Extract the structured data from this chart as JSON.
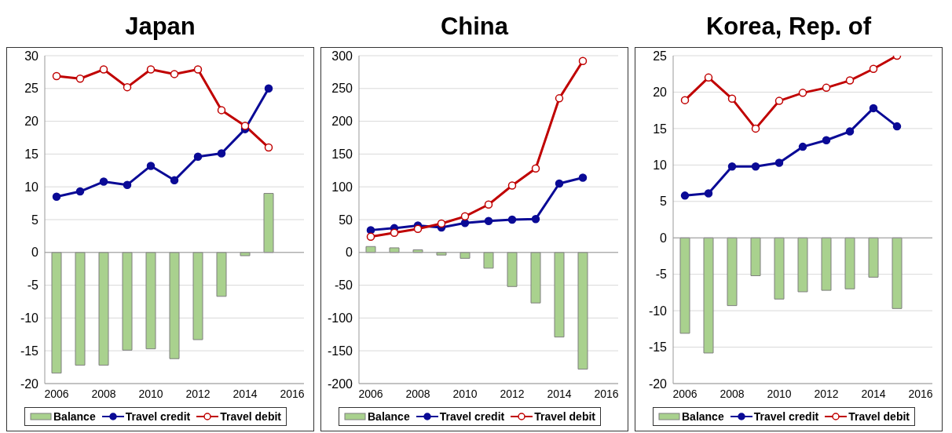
{
  "chart_data": [
    {
      "type": "bar",
      "title": "Japan",
      "x": [
        2006,
        2007,
        2008,
        2009,
        2010,
        2011,
        2012,
        2013,
        2014,
        2015
      ],
      "xlim": [
        2005.5,
        2016.5
      ],
      "xticks": [
        2006,
        2008,
        2010,
        2012,
        2014,
        2016
      ],
      "ylim": [
        -20,
        30
      ],
      "yticks": [
        -20,
        -15,
        -10,
        -5,
        0,
        5,
        10,
        15,
        20,
        25,
        30
      ],
      "grid": "y",
      "legend": "bottom",
      "marker": "circle",
      "series": [
        {
          "name": "Balance",
          "color": "#a9d18e",
          "values": [
            -18.4,
            -17.2,
            -17.2,
            -14.9,
            -14.7,
            -16.2,
            -13.3,
            -6.7,
            -0.5,
            9.0
          ]
        },
        {
          "name": "Travel credit",
          "type": "line",
          "color": "#0a0a96",
          "values": [
            8.5,
            9.3,
            10.8,
            10.3,
            13.2,
            11.0,
            14.6,
            15.1,
            18.8,
            25.0
          ]
        },
        {
          "name": "Travel debit",
          "type": "line",
          "color": "#c00000",
          "values": [
            26.9,
            26.5,
            27.9,
            25.2,
            27.9,
            27.2,
            27.9,
            21.7,
            19.3,
            16.0
          ]
        }
      ]
    },
    {
      "type": "bar",
      "title": "China",
      "x": [
        2006,
        2007,
        2008,
        2009,
        2010,
        2011,
        2012,
        2013,
        2014,
        2015
      ],
      "xlim": [
        2005.5,
        2016.5
      ],
      "xticks": [
        2006,
        2008,
        2010,
        2012,
        2014,
        2016
      ],
      "ylim": [
        -200,
        300
      ],
      "yticks": [
        -200,
        -150,
        -100,
        -50,
        0,
        50,
        100,
        150,
        200,
        250,
        300
      ],
      "grid": "y",
      "legend": "bottom",
      "marker": "circle",
      "series": [
        {
          "name": "Balance",
          "color": "#a9d18e",
          "values": [
            9,
            7,
            4,
            -4,
            -9,
            -24,
            -52,
            -77,
            -129,
            -178
          ]
        },
        {
          "name": "Travel credit",
          "type": "line",
          "color": "#0a0a96",
          "values": [
            34,
            37,
            41,
            38,
            45,
            48,
            50,
            51,
            105,
            114
          ]
        },
        {
          "name": "Travel debit",
          "type": "line",
          "color": "#c00000",
          "values": [
            24,
            30,
            36,
            44,
            55,
            73,
            102,
            128,
            235,
            292
          ]
        }
      ]
    },
    {
      "type": "bar",
      "title": "Korea, Rep. of",
      "x": [
        2006,
        2007,
        2008,
        2009,
        2010,
        2011,
        2012,
        2013,
        2014,
        2015
      ],
      "xlim": [
        2005.5,
        2016.5
      ],
      "xticks": [
        2006,
        2008,
        2010,
        2012,
        2014,
        2016
      ],
      "ylim": [
        -20,
        25
      ],
      "yticks": [
        -20,
        -15,
        -10,
        -5,
        0,
        5,
        10,
        15,
        20,
        25
      ],
      "grid": "y",
      "legend": "bottom",
      "marker": "circle",
      "series": [
        {
          "name": "Balance",
          "color": "#a9d18e",
          "values": [
            -13.1,
            -15.8,
            -9.3,
            -5.2,
            -8.4,
            -7.4,
            -7.2,
            -7.0,
            -5.4,
            -9.7
          ]
        },
        {
          "name": "Travel credit",
          "type": "line",
          "color": "#0a0a96",
          "values": [
            5.8,
            6.1,
            9.8,
            9.8,
            10.3,
            12.5,
            13.4,
            14.6,
            17.8,
            15.3
          ]
        },
        {
          "name": "Travel debit",
          "type": "line",
          "color": "#c00000",
          "values": [
            18.9,
            22.0,
            19.1,
            15.0,
            18.8,
            19.9,
            20.6,
            21.6,
            23.2,
            25.0
          ]
        }
      ]
    }
  ]
}
